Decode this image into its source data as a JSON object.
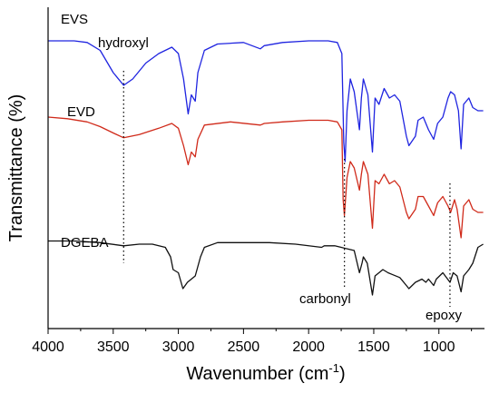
{
  "chart_data": {
    "type": "line",
    "xlabel": "Wavenumber (cm",
    "xlabel_sup": "-1",
    "xlabel_tail": ")",
    "ylabel": "Transmittance (%)",
    "xlim": [
      4000,
      650
    ],
    "x_reversed": true,
    "xticks": [
      4000,
      3500,
      3000,
      2500,
      2000,
      1500,
      1000
    ],
    "ylim": [
      0,
      1
    ],
    "yticks_shown": false,
    "grid": false,
    "series": [
      {
        "name": "EVS",
        "color": "#1f24e0",
        "points": [
          [
            4000,
            0.9
          ],
          [
            3800,
            0.9
          ],
          [
            3700,
            0.895
          ],
          [
            3600,
            0.87
          ],
          [
            3500,
            0.8
          ],
          [
            3420,
            0.76
          ],
          [
            3350,
            0.78
          ],
          [
            3250,
            0.83
          ],
          [
            3150,
            0.86
          ],
          [
            3050,
            0.88
          ],
          [
            3000,
            0.86
          ],
          [
            2960,
            0.78
          ],
          [
            2925,
            0.67
          ],
          [
            2900,
            0.73
          ],
          [
            2870,
            0.71
          ],
          [
            2850,
            0.8
          ],
          [
            2800,
            0.87
          ],
          [
            2700,
            0.89
          ],
          [
            2500,
            0.895
          ],
          [
            2370,
            0.875
          ],
          [
            2340,
            0.885
          ],
          [
            2200,
            0.895
          ],
          [
            2000,
            0.9
          ],
          [
            1850,
            0.9
          ],
          [
            1780,
            0.895
          ],
          [
            1745,
            0.86
          ],
          [
            1730,
            0.58
          ],
          [
            1720,
            0.52
          ],
          [
            1705,
            0.68
          ],
          [
            1680,
            0.78
          ],
          [
            1650,
            0.74
          ],
          [
            1610,
            0.62
          ],
          [
            1595,
            0.72
          ],
          [
            1580,
            0.78
          ],
          [
            1545,
            0.73
          ],
          [
            1510,
            0.55
          ],
          [
            1490,
            0.72
          ],
          [
            1460,
            0.7
          ],
          [
            1420,
            0.75
          ],
          [
            1380,
            0.72
          ],
          [
            1340,
            0.73
          ],
          [
            1300,
            0.71
          ],
          [
            1250,
            0.6
          ],
          [
            1230,
            0.57
          ],
          [
            1180,
            0.6
          ],
          [
            1160,
            0.65
          ],
          [
            1120,
            0.66
          ],
          [
            1080,
            0.62
          ],
          [
            1040,
            0.59
          ],
          [
            1010,
            0.64
          ],
          [
            970,
            0.66
          ],
          [
            930,
            0.72
          ],
          [
            910,
            0.74
          ],
          [
            880,
            0.73
          ],
          [
            850,
            0.68
          ],
          [
            830,
            0.56
          ],
          [
            810,
            0.7
          ],
          [
            770,
            0.72
          ],
          [
            740,
            0.69
          ],
          [
            700,
            0.68
          ],
          [
            660,
            0.68
          ]
        ]
      },
      {
        "name": "EVD",
        "color": "#d02a1a",
        "points": [
          [
            4000,
            0.66
          ],
          [
            3850,
            0.655
          ],
          [
            3700,
            0.645
          ],
          [
            3600,
            0.63
          ],
          [
            3500,
            0.61
          ],
          [
            3420,
            0.595
          ],
          [
            3300,
            0.605
          ],
          [
            3150,
            0.625
          ],
          [
            3050,
            0.64
          ],
          [
            3000,
            0.625
          ],
          [
            2960,
            0.57
          ],
          [
            2925,
            0.51
          ],
          [
            2900,
            0.55
          ],
          [
            2870,
            0.535
          ],
          [
            2850,
            0.59
          ],
          [
            2800,
            0.635
          ],
          [
            2600,
            0.645
          ],
          [
            2370,
            0.635
          ],
          [
            2340,
            0.64
          ],
          [
            2200,
            0.645
          ],
          [
            2000,
            0.65
          ],
          [
            1850,
            0.65
          ],
          [
            1780,
            0.645
          ],
          [
            1745,
            0.62
          ],
          [
            1735,
            0.4
          ],
          [
            1725,
            0.35
          ],
          [
            1705,
            0.47
          ],
          [
            1680,
            0.52
          ],
          [
            1650,
            0.5
          ],
          [
            1610,
            0.43
          ],
          [
            1595,
            0.48
          ],
          [
            1580,
            0.52
          ],
          [
            1545,
            0.48
          ],
          [
            1510,
            0.31
          ],
          [
            1490,
            0.46
          ],
          [
            1460,
            0.45
          ],
          [
            1420,
            0.48
          ],
          [
            1380,
            0.45
          ],
          [
            1340,
            0.46
          ],
          [
            1300,
            0.44
          ],
          [
            1250,
            0.36
          ],
          [
            1230,
            0.34
          ],
          [
            1180,
            0.37
          ],
          [
            1160,
            0.41
          ],
          [
            1120,
            0.41
          ],
          [
            1080,
            0.38
          ],
          [
            1040,
            0.35
          ],
          [
            1010,
            0.39
          ],
          [
            970,
            0.41
          ],
          [
            930,
            0.38
          ],
          [
            910,
            0.36
          ],
          [
            880,
            0.4
          ],
          [
            860,
            0.37
          ],
          [
            830,
            0.28
          ],
          [
            810,
            0.38
          ],
          [
            770,
            0.4
          ],
          [
            740,
            0.37
          ],
          [
            700,
            0.36
          ],
          [
            660,
            0.36
          ]
        ]
      },
      {
        "name": "DGEBA",
        "color": "#111111",
        "points": [
          [
            4000,
            0.27
          ],
          [
            3800,
            0.27
          ],
          [
            3600,
            0.265
          ],
          [
            3420,
            0.255
          ],
          [
            3300,
            0.26
          ],
          [
            3200,
            0.26
          ],
          [
            3100,
            0.25
          ],
          [
            3060,
            0.22
          ],
          [
            3040,
            0.18
          ],
          [
            3000,
            0.17
          ],
          [
            2965,
            0.12
          ],
          [
            2930,
            0.14
          ],
          [
            2870,
            0.16
          ],
          [
            2830,
            0.22
          ],
          [
            2800,
            0.25
          ],
          [
            2700,
            0.265
          ],
          [
            2500,
            0.265
          ],
          [
            2300,
            0.265
          ],
          [
            2100,
            0.26
          ],
          [
            1900,
            0.25
          ],
          [
            1880,
            0.255
          ],
          [
            1800,
            0.255
          ],
          [
            1750,
            0.25
          ],
          [
            1700,
            0.245
          ],
          [
            1650,
            0.24
          ],
          [
            1610,
            0.17
          ],
          [
            1590,
            0.2
          ],
          [
            1580,
            0.22
          ],
          [
            1550,
            0.2
          ],
          [
            1510,
            0.1
          ],
          [
            1490,
            0.16
          ],
          [
            1460,
            0.17
          ],
          [
            1430,
            0.18
          ],
          [
            1390,
            0.17
          ],
          [
            1360,
            0.165
          ],
          [
            1300,
            0.155
          ],
          [
            1250,
            0.13
          ],
          [
            1230,
            0.12
          ],
          [
            1180,
            0.14
          ],
          [
            1130,
            0.15
          ],
          [
            1100,
            0.14
          ],
          [
            1080,
            0.15
          ],
          [
            1040,
            0.13
          ],
          [
            1020,
            0.15
          ],
          [
            970,
            0.17
          ],
          [
            915,
            0.14
          ],
          [
            890,
            0.17
          ],
          [
            860,
            0.16
          ],
          [
            830,
            0.11
          ],
          [
            810,
            0.16
          ],
          [
            770,
            0.18
          ],
          [
            740,
            0.2
          ],
          [
            700,
            0.25
          ],
          [
            660,
            0.26
          ]
        ]
      }
    ],
    "reference_lines": [
      {
        "x": 3420,
        "label": "hydroxyl"
      },
      {
        "x": 1725,
        "label": "carbonyl"
      },
      {
        "x": 915,
        "label": "epoxy"
      }
    ]
  }
}
